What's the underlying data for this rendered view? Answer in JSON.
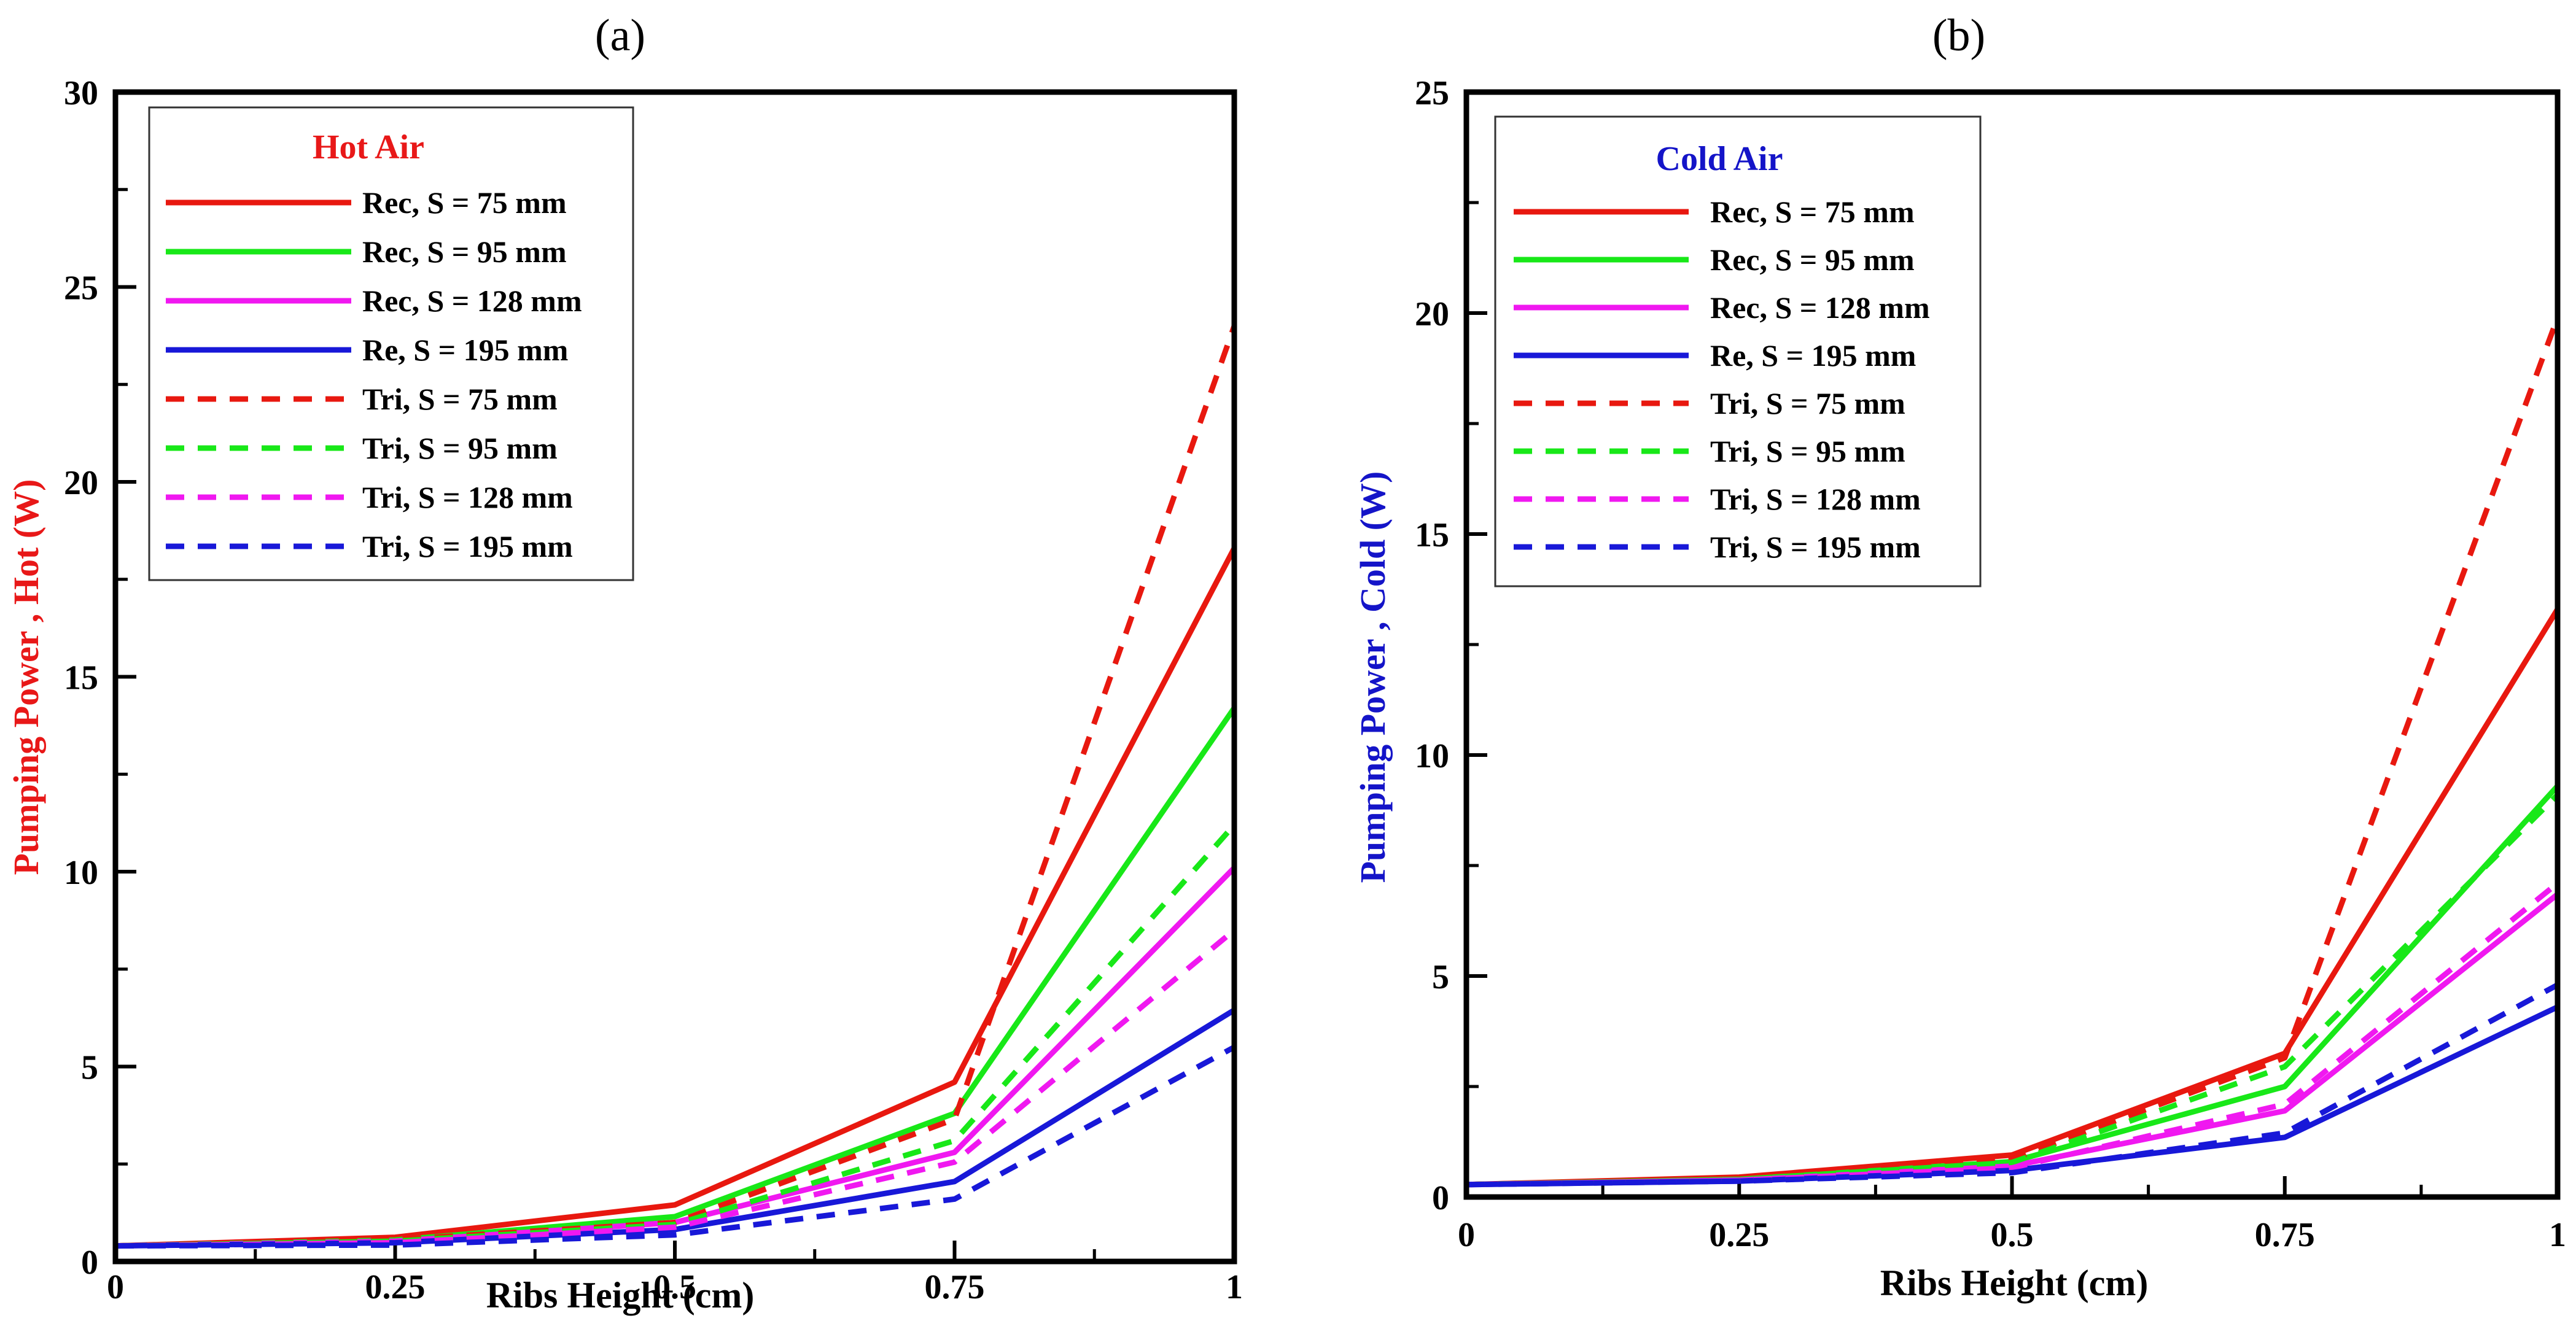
{
  "chart_data": [
    {
      "type": "line",
      "panel_label": "(a)",
      "title": "",
      "legend_title": "Hot Air",
      "legend_title_color": "#e81818",
      "legend_position": "top-left",
      "xlabel": "Ribs Height (cm)",
      "ylabel": "Pumping Power , Hot (W)",
      "ylabel_color": "#e81818",
      "xlim": [
        0,
        1
      ],
      "ylim": [
        0,
        30
      ],
      "xticks": [
        0,
        0.25,
        0.5,
        0.75,
        1
      ],
      "xtick_labels": [
        "0",
        "0.25",
        "0.5",
        "0.75",
        "1"
      ],
      "yticks": [
        0,
        5,
        10,
        15,
        20,
        25,
        30
      ],
      "ytick_labels": [
        "0",
        "5",
        "10",
        "15",
        "20",
        "25",
        "30"
      ],
      "grid": false,
      "x": [
        0,
        0.25,
        0.5,
        0.75,
        1
      ],
      "series": [
        {
          "name": "Rec, S = 75 mm",
          "color": "#e8180f",
          "dashed": false,
          "values": [
            0.4,
            0.62,
            1.45,
            4.6,
            18.3
          ]
        },
        {
          "name": "Rec, S = 95 mm",
          "color": "#18e818",
          "dashed": false,
          "values": [
            0.4,
            0.55,
            1.15,
            3.8,
            14.2
          ]
        },
        {
          "name": "Rec, S = 128 mm",
          "color": "#f018f0",
          "dashed": false,
          "values": [
            0.4,
            0.52,
            1.0,
            2.8,
            10.1
          ]
        },
        {
          "name": "Re, S = 195 mm",
          "color": "#1818d8",
          "dashed": false,
          "values": [
            0.4,
            0.48,
            0.82,
            2.05,
            6.45
          ]
        },
        {
          "name": "Tri, S = 75 mm",
          "color": "#e8180f",
          "dashed": true,
          "values": [
            0.4,
            0.56,
            1.0,
            3.65,
            24.0
          ]
        },
        {
          "name": "Tri, S = 95 mm",
          "color": "#18e818",
          "dashed": true,
          "values": [
            0.4,
            0.52,
            0.95,
            3.1,
            11.2
          ]
        },
        {
          "name": "Tri, S = 128 mm",
          "color": "#f018f0",
          "dashed": true,
          "values": [
            0.4,
            0.48,
            0.88,
            2.55,
            8.5
          ]
        },
        {
          "name": "Tri, S = 195 mm",
          "color": "#1818d8",
          "dashed": true,
          "values": [
            0.4,
            0.42,
            0.68,
            1.6,
            5.5
          ]
        }
      ]
    },
    {
      "type": "line",
      "panel_label": "(b)",
      "title": "",
      "legend_title": "Cold Air",
      "legend_title_color": "#1414c8",
      "legend_position": "top-left",
      "xlabel": "Ribs Height (cm)",
      "ylabel": "Pumping Power , Cold (W)",
      "ylabel_color": "#1414c8",
      "xlim": [
        0,
        1
      ],
      "ylim": [
        0,
        25
      ],
      "xticks": [
        0,
        0.25,
        0.5,
        0.75,
        1
      ],
      "xtick_labels": [
        "0",
        "0.25",
        "0.5",
        "0.75",
        "1"
      ],
      "yticks": [
        0,
        5,
        10,
        15,
        20,
        25
      ],
      "ytick_labels": [
        "0",
        "5",
        "10",
        "15",
        "20",
        "25"
      ],
      "grid": false,
      "x": [
        0,
        0.25,
        0.5,
        0.75,
        1
      ],
      "series": [
        {
          "name": "Rec, S = 75 mm",
          "color": "#e8180f",
          "dashed": false,
          "values": [
            0.28,
            0.45,
            0.95,
            3.25,
            13.3
          ]
        },
        {
          "name": "Rec, S = 95 mm",
          "color": "#18e818",
          "dashed": false,
          "values": [
            0.28,
            0.4,
            0.8,
            2.5,
            9.3
          ]
        },
        {
          "name": "Rec, S = 128 mm",
          "color": "#f018f0",
          "dashed": false,
          "values": [
            0.28,
            0.38,
            0.7,
            1.95,
            6.85
          ]
        },
        {
          "name": "Re, S = 195 mm",
          "color": "#1818d8",
          "dashed": false,
          "values": [
            0.28,
            0.36,
            0.6,
            1.35,
            4.3
          ]
        },
        {
          "name": "Tri, S = 75 mm",
          "color": "#e8180f",
          "dashed": true,
          "values": [
            0.28,
            0.43,
            0.85,
            3.15,
            19.9
          ]
        },
        {
          "name": "Tri, S = 95 mm",
          "color": "#18e818",
          "dashed": true,
          "values": [
            0.28,
            0.4,
            0.78,
            2.95,
            9.1
          ]
        },
        {
          "name": "Tri, S = 128 mm",
          "color": "#f018f0",
          "dashed": true,
          "values": [
            0.28,
            0.38,
            0.66,
            2.1,
            7.1
          ]
        },
        {
          "name": "Tri, S = 195 mm",
          "color": "#1818d8",
          "dashed": true,
          "values": [
            0.28,
            0.36,
            0.55,
            1.45,
            4.8
          ]
        }
      ]
    }
  ]
}
